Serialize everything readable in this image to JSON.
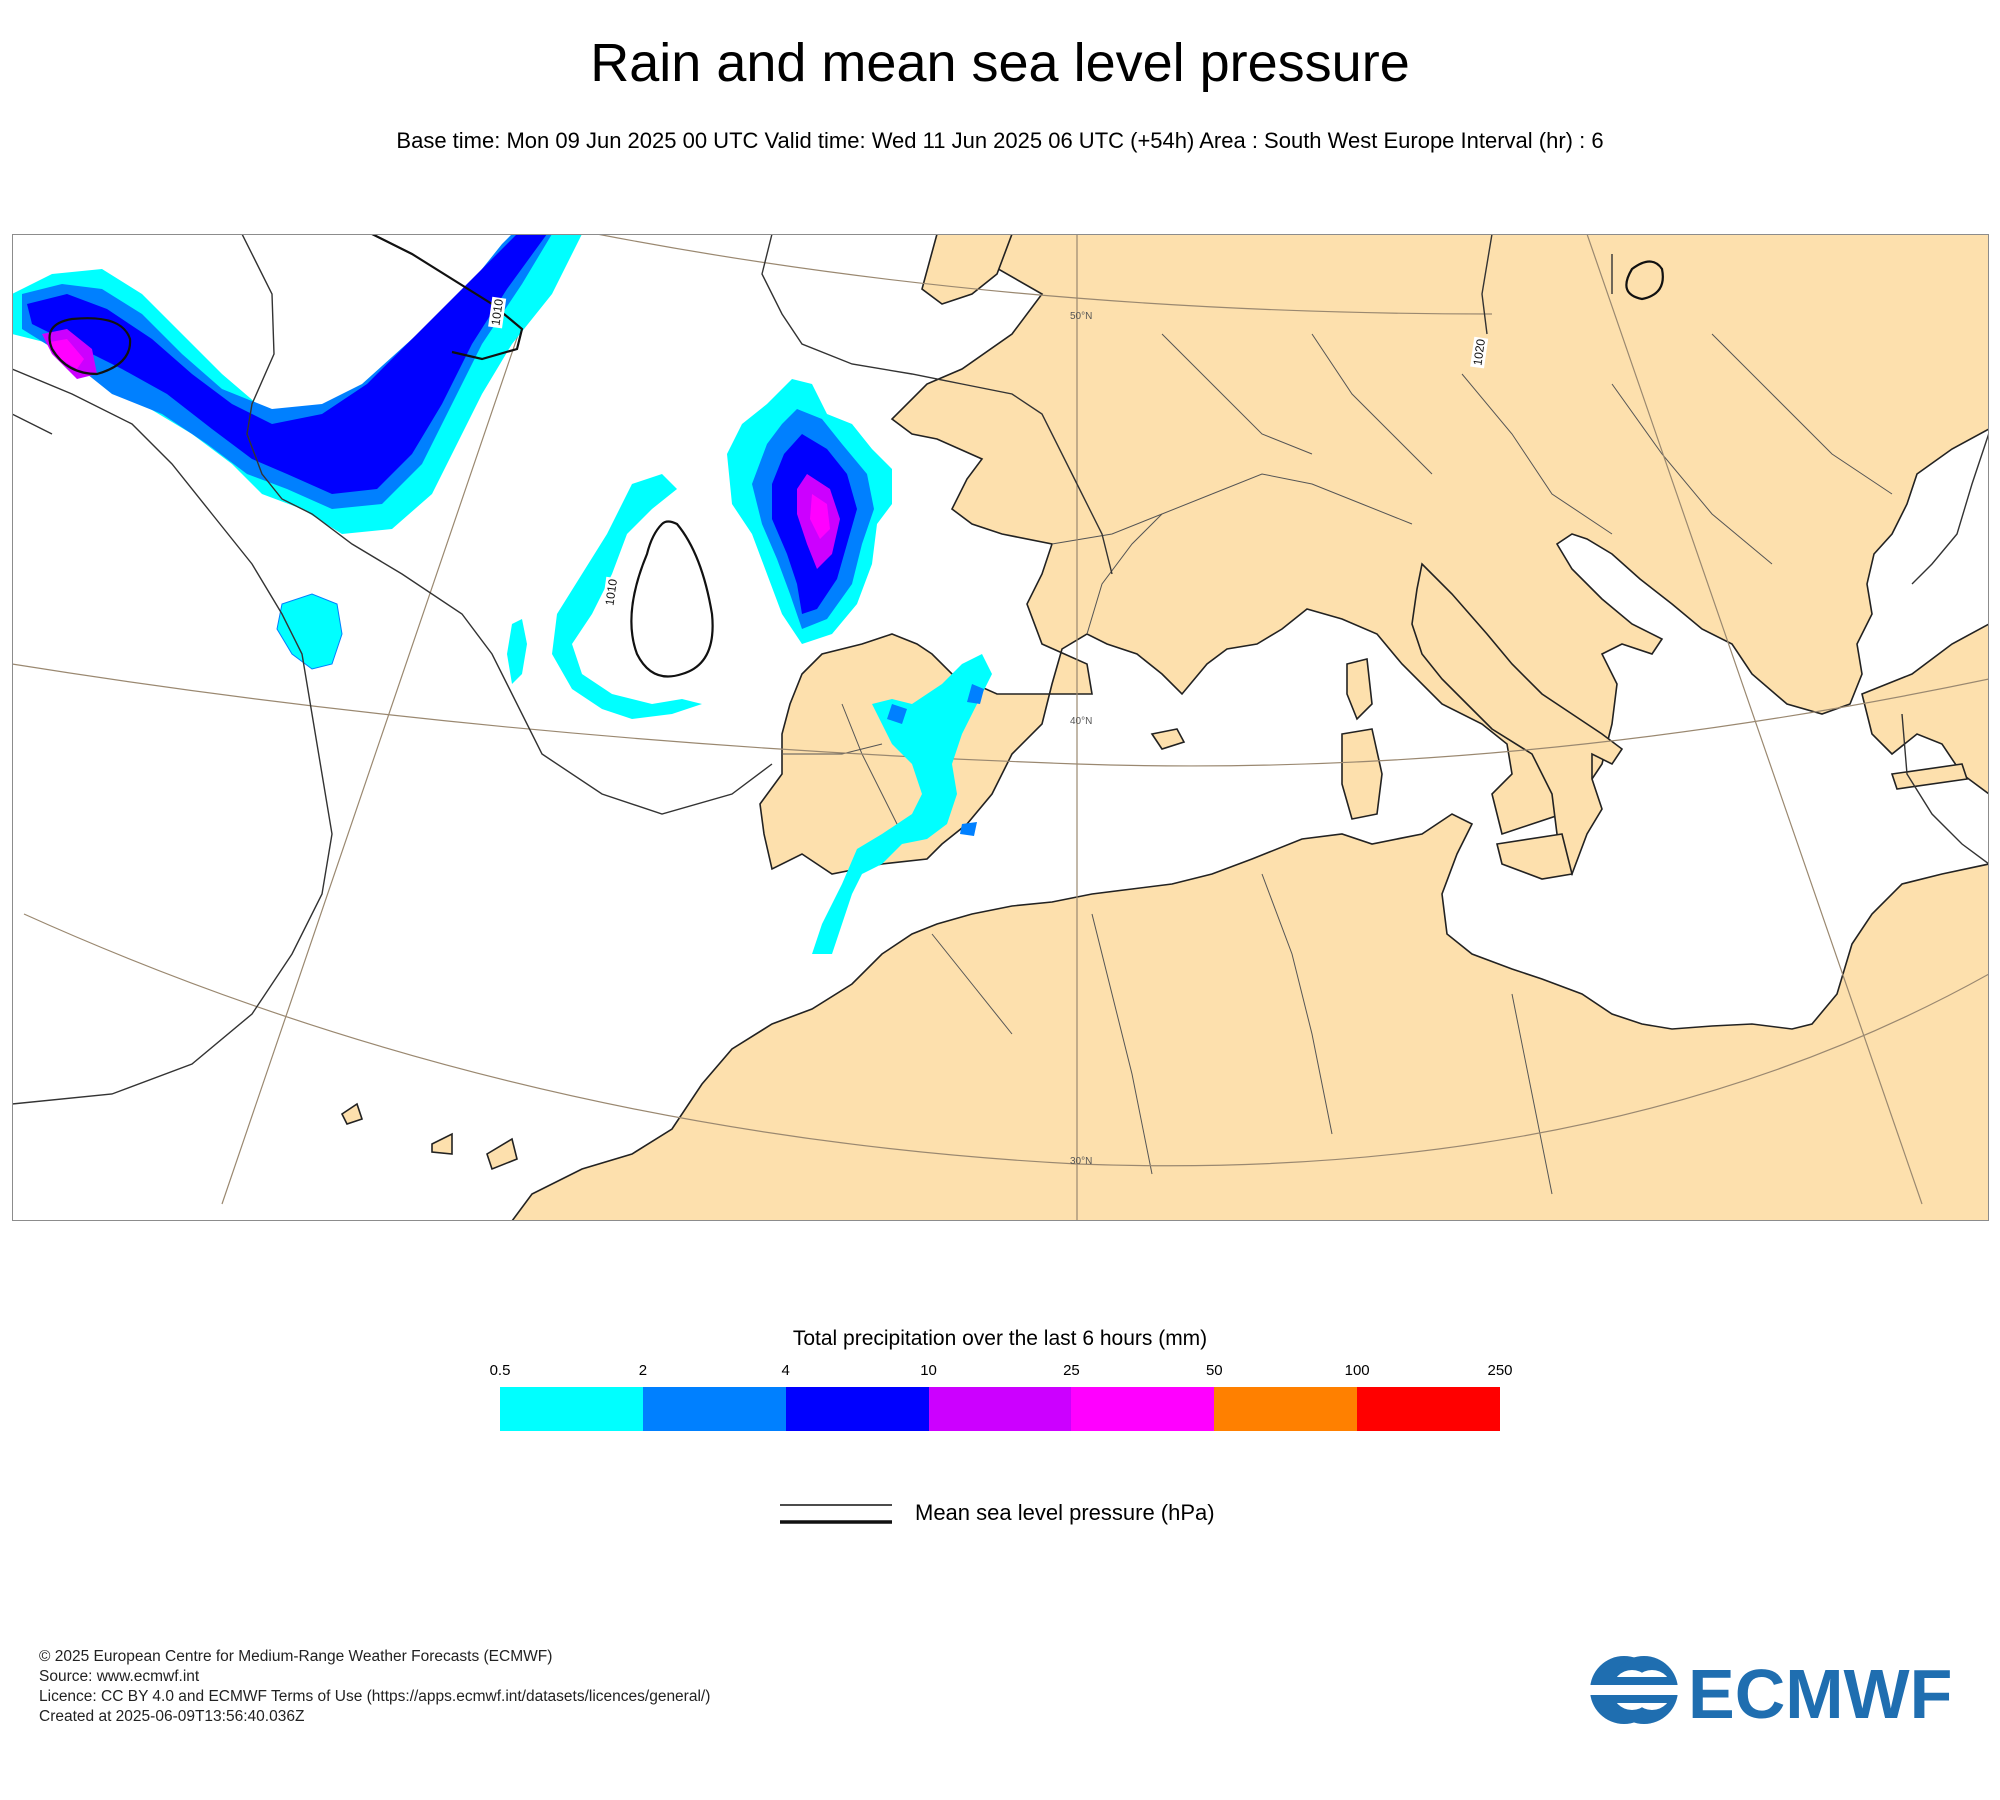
{
  "title": "Rain and mean sea level pressure",
  "subtitle": "Base time: Mon 09 Jun 2025 00 UTC Valid time: Wed 11 Jun 2025 06 UTC (+54h) Area : South West Europe Interval (hr) : 6",
  "map": {
    "lat_labels": [
      "50°N",
      "40°N",
      "30°N"
    ],
    "isobar_labels": [
      "1010",
      "1010",
      "1020"
    ],
    "colors": {
      "land": "#fde0ad",
      "sea": "#ffffff",
      "coast": "#222222",
      "grid": "#9a8870",
      "isobar": "#111111"
    }
  },
  "legend": {
    "title": "Total precipitation over the last 6 hours (mm)",
    "thresholds": [
      "0.5",
      "2",
      "4",
      "10",
      "25",
      "50",
      "100",
      "250"
    ],
    "colors": [
      "#00ffff",
      "#0080ff",
      "#0000ff",
      "#cc00ff",
      "#ff00ff",
      "#ff8000",
      "#ff0000"
    ],
    "mslp_label": "Mean sea level pressure (hPa)"
  },
  "footer": {
    "lines": [
      "© 2025 European Centre for Medium-Range Weather Forecasts (ECMWF)",
      "Source: www.ecmwf.int",
      "Licence: CC BY 4.0 and ECMWF Terms of Use (https://apps.ecmwf.int/datasets/licences/general/)",
      "Created at 2025-06-09T13:56:40.036Z"
    ],
    "logo_text": "ECMWF",
    "logo_color": "#1f6eb0"
  }
}
